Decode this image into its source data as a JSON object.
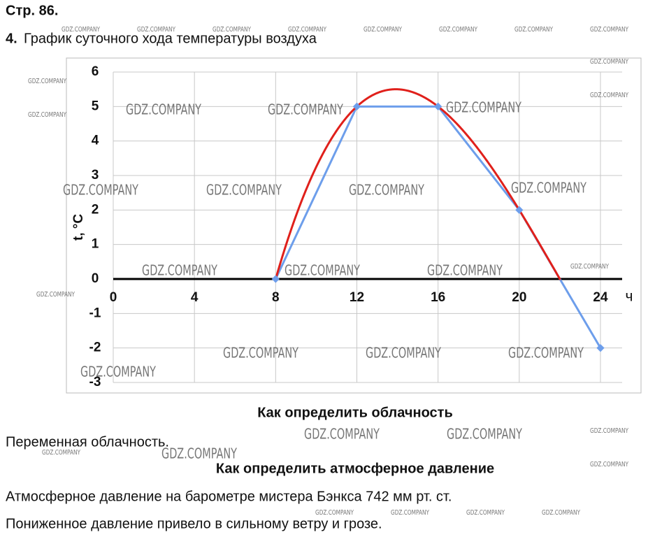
{
  "header": {
    "page": "Стр. 86.",
    "task_number": "4.",
    "task_title": "График суточного хода температуры воздуха"
  },
  "chart_data": {
    "type": "line",
    "x": [
      8,
      12,
      16,
      20,
      24
    ],
    "series": [
      {
        "color": "#6d9eeb",
        "values": [
          0,
          5,
          5,
          2,
          -2
        ]
      }
    ],
    "trend_color": "#e0201b",
    "xlim": [
      0,
      24
    ],
    "xticks": [
      0,
      4,
      8,
      12,
      16,
      20,
      24
    ],
    "ylim": [
      -3,
      6
    ],
    "yticks": [
      -3,
      -2,
      -1,
      0,
      1,
      2,
      3,
      4,
      5,
      6
    ],
    "x_label": "ч",
    "y_label": "t, °C",
    "grid": true
  },
  "sections": [
    {
      "heading": "Как определить облачность",
      "lines": [
        "Переменная облачность."
      ]
    },
    {
      "heading": "Как определить атмосферное давление",
      "lines": [
        "Атмосферное давление на барометре мистера Бэнкса 742 мм рт. ст.",
        "Пониженное давление привело в сильному ветру и грозе."
      ]
    }
  ],
  "watermark": "GDZ.COMPANY"
}
